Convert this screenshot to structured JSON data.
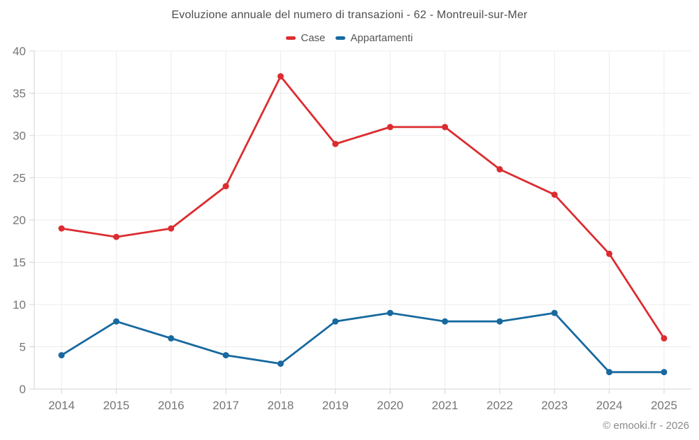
{
  "title": "Evoluzione annuale del numero di transazioni - 62 - Montreuil-sur-Mer",
  "footer": {
    "copyright": "© emooki.fr - 2026"
  },
  "chart_data": {
    "type": "line",
    "title": "Evoluzione annuale del numero di transazioni - 62 - Montreuil-sur-Mer",
    "categories": [
      "2014",
      "2015",
      "2016",
      "2017",
      "2018",
      "2019",
      "2020",
      "2021",
      "2022",
      "2023",
      "2024",
      "2025"
    ],
    "series": [
      {
        "name": "Case",
        "color": "#dc2c30",
        "values": [
          19,
          18,
          19,
          24,
          37,
          29,
          31,
          31,
          26,
          23,
          16,
          6
        ]
      },
      {
        "name": "Appartamenti",
        "color": "#17699f",
        "values": [
          4,
          8,
          6,
          4,
          3,
          8,
          9,
          8,
          8,
          9,
          2,
          2
        ]
      }
    ],
    "xlabel": "",
    "ylabel": "",
    "ylim": [
      0,
      40
    ],
    "ytick_step": 5,
    "grid": true,
    "legend_position": "top",
    "style_colors": {
      "grid": "#ececec",
      "axis": "#d3d3d3",
      "tick_label": "#757575",
      "title": "#4d4d4d",
      "legend_text": "#555555",
      "copyright_text": "#8a8a8a"
    }
  }
}
